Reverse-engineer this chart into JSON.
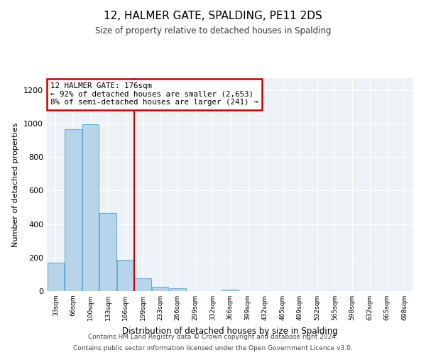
{
  "title": "12, HALMER GATE, SPALDING, PE11 2DS",
  "subtitle": "Size of property relative to detached houses in Spalding",
  "xlabel": "Distribution of detached houses by size in Spalding",
  "ylabel": "Number of detached properties",
  "bar_labels": [
    "33sqm",
    "66sqm",
    "100sqm",
    "133sqm",
    "166sqm",
    "199sqm",
    "233sqm",
    "266sqm",
    "299sqm",
    "332sqm",
    "366sqm",
    "399sqm",
    "432sqm",
    "465sqm",
    "499sqm",
    "532sqm",
    "565sqm",
    "598sqm",
    "632sqm",
    "665sqm",
    "698sqm"
  ],
  "bar_values": [
    170,
    965,
    995,
    465,
    185,
    75,
    25,
    18,
    0,
    0,
    10,
    0,
    0,
    0,
    0,
    0,
    0,
    0,
    0,
    0,
    0
  ],
  "bar_color": "#b8d4ea",
  "bar_edge_color": "#6aaed6",
  "vline_color": "#cc0000",
  "annotation_title": "12 HALMER GATE: 176sqm",
  "annotation_line2": "← 92% of detached houses are smaller (2,653)",
  "annotation_line3": "8% of semi-detached houses are larger (241) →",
  "annotation_box_color": "#cc0000",
  "ylim": [
    0,
    1270
  ],
  "yticks": [
    0,
    200,
    400,
    600,
    800,
    1000,
    1200
  ],
  "footer1": "Contains HM Land Registry data © Crown copyright and database right 2024.",
  "footer2": "Contains public sector information licensed under the Open Government Licence v3.0.",
  "background_color": "#edf2f7"
}
